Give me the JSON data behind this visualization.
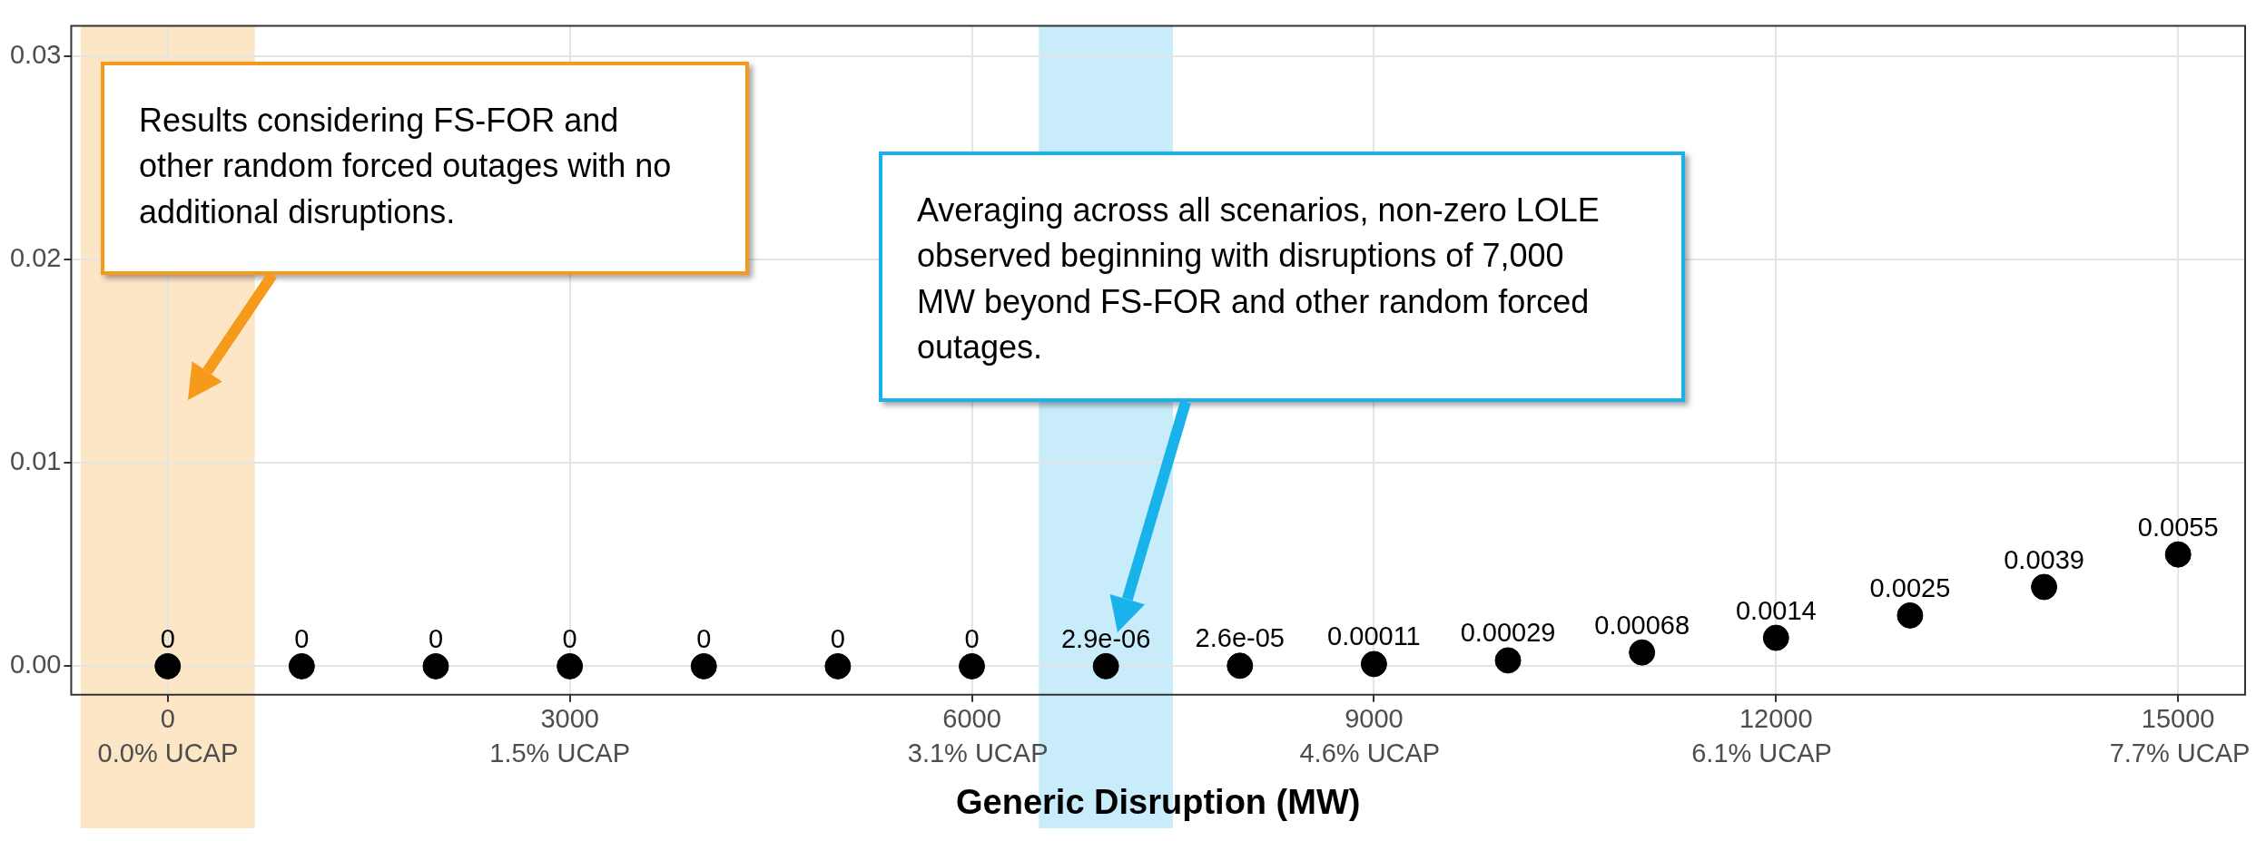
{
  "chart_data": {
    "type": "scatter",
    "xlabel": "Generic Disruption (MW)",
    "x": [
      0,
      1000,
      2000,
      3000,
      4000,
      5000,
      6000,
      7000,
      8000,
      9000,
      10000,
      11000,
      12000,
      13000,
      14000,
      15000
    ],
    "series": [
      {
        "color": "#000000",
        "values": [
          0,
          0,
          0,
          0,
          0,
          0,
          0,
          2.9e-06,
          2.6e-05,
          0.00011,
          0.00029,
          0.00068,
          0.0014,
          0.0025,
          0.0039,
          0.0055
        ],
        "value_labels": [
          "0",
          "0",
          "0",
          "0",
          "0",
          "0",
          "0",
          "2.9e-06",
          "2.6e-05",
          "0.00011",
          "0.00029",
          "0.00068",
          "0.0014",
          "0.0025",
          "0.0039",
          "0.0055"
        ]
      }
    ],
    "xlim": [
      -720,
      15500
    ],
    "ylim": [
      -0.0014,
      0.0315
    ],
    "xticks": [
      0,
      3000,
      6000,
      9000,
      12000,
      15000
    ],
    "x2lim": [
      -0.37,
      7.95
    ],
    "x2ticks": [
      {
        "value": 0,
        "label": "0.0% UCAP"
      },
      {
        "value": 1.5,
        "label": "1.5% UCAP"
      },
      {
        "value": 3.1,
        "label": "3.1% UCAP"
      },
      {
        "value": 4.6,
        "label": "4.6% UCAP"
      },
      {
        "value": 6.1,
        "label": "6.1% UCAP"
      },
      {
        "value": 7.7,
        "label": "7.7% UCAP"
      }
    ],
    "yticks": [
      {
        "value": 0,
        "label": "0.00"
      },
      {
        "value": 0.01,
        "label": "0.01"
      },
      {
        "value": 0.02,
        "label": "0.02"
      },
      {
        "value": 0.03,
        "label": "0.03"
      }
    ],
    "bands": [
      {
        "axis": "x",
        "from": -650,
        "to": 650,
        "color": "#fde6c6"
      },
      {
        "axis": "x",
        "from": 6500,
        "to": 7500,
        "color": "#c8ecf9"
      }
    ],
    "annotations": [
      "Results considering FS-FOR and other random forced outages with no additional disruptions.",
      "Averaging across all scenarios, non-zero LOLE observed beginning with disruptions of 7,000 MW beyond FS-FOR and other random forced outages."
    ],
    "grid": true,
    "marker": "circle",
    "legend": false
  }
}
